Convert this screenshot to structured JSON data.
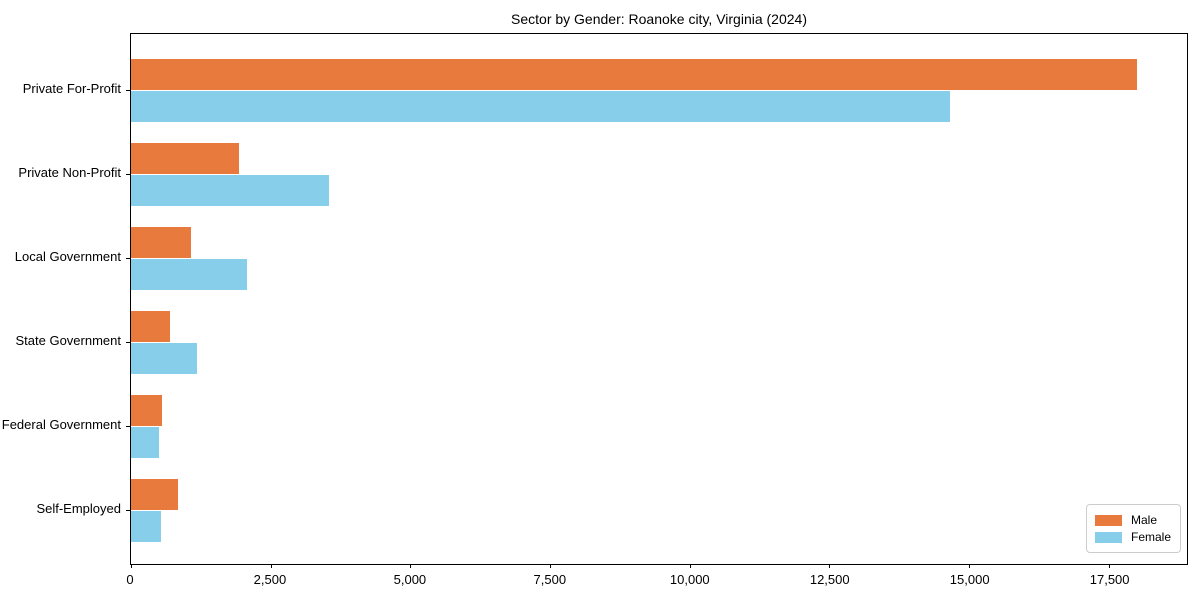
{
  "chart_data": {
    "type": "bar",
    "orientation": "horizontal",
    "title": "Sector by Gender: Roanoke city, Virginia (2024)",
    "categories": [
      "Private For-Profit",
      "Private Non-Profit",
      "Local Government",
      "State Government",
      "Federal Government",
      "Self-Employed"
    ],
    "series": [
      {
        "name": "Male",
        "color": "#e87a3d",
        "values": [
          18000,
          1940,
          1070,
          700,
          555,
          850
        ]
      },
      {
        "name": "Female",
        "color": "#87ceeb",
        "values": [
          14650,
          3550,
          2070,
          1175,
          510,
          540
        ]
      }
    ],
    "xlim": [
      0,
      18900
    ],
    "xticks": [
      0,
      2500,
      5000,
      7500,
      10000,
      12500,
      15000,
      17500
    ],
    "xtick_labels": [
      "0",
      "2,500",
      "5,000",
      "7,500",
      "10,000",
      "12,500",
      "15,000",
      "17,500"
    ],
    "xlabel": "",
    "ylabel": "",
    "grid": false,
    "legend": {
      "position": "lower right",
      "entries": [
        "Male",
        "Female"
      ]
    },
    "colors": {
      "male": "#e87a3d",
      "female": "#87ceeb",
      "axis": "#000000",
      "legend_border": "#cccccc",
      "background": "#ffffff"
    }
  }
}
